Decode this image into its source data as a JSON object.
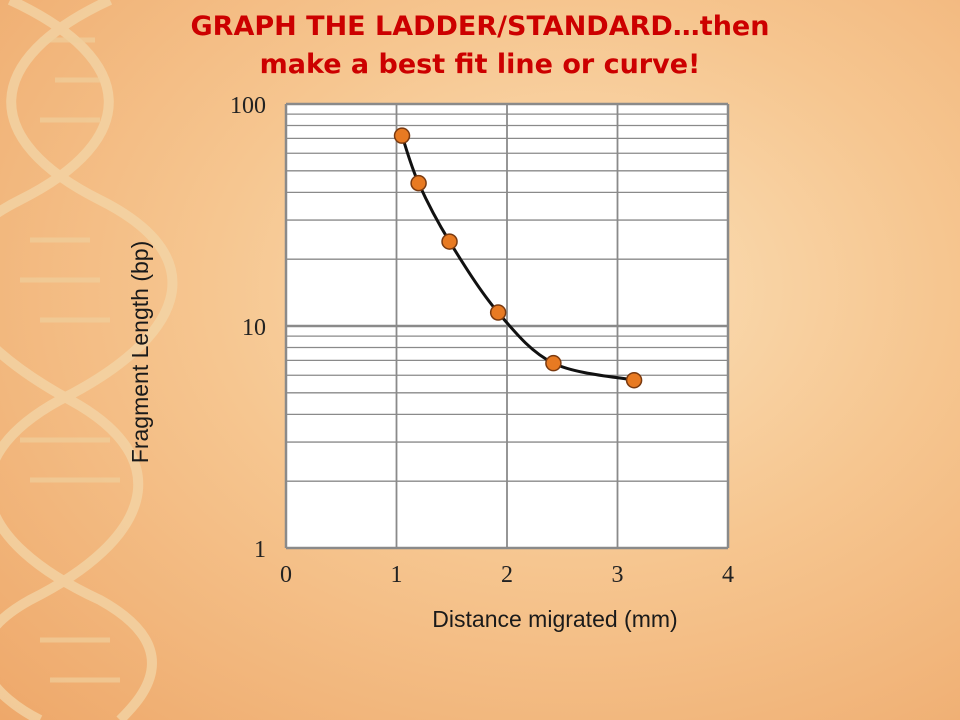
{
  "title_line1": "GRAPH THE LADDER/STANDARD…then",
  "title_line2": "make a best fit line or curve!",
  "colors": {
    "title": "#cc0000",
    "plot_bg": "#ffffff",
    "grid": "#8a8a8a",
    "point_fill": "#e87a22",
    "point_stroke": "#7a3a10",
    "curve": "#111111"
  },
  "chart_data": {
    "type": "scatter",
    "xlabel": "Distance migrated (mm)",
    "ylabel": "Fragment Length (bp)",
    "xlim": [
      0,
      4
    ],
    "ylim": [
      1,
      100
    ],
    "yscale": "log",
    "grid": true,
    "x_ticks": [
      "0",
      "1",
      "2",
      "3",
      "4"
    ],
    "y_ticks": [
      "1",
      "10",
      "100"
    ],
    "points": [
      {
        "x": 1.05,
        "y": 72
      },
      {
        "x": 1.2,
        "y": 44
      },
      {
        "x": 1.48,
        "y": 24
      },
      {
        "x": 1.92,
        "y": 11.5
      },
      {
        "x": 2.42,
        "y": 6.8
      },
      {
        "x": 3.15,
        "y": 5.7
      }
    ],
    "best_fit_curve": true
  }
}
